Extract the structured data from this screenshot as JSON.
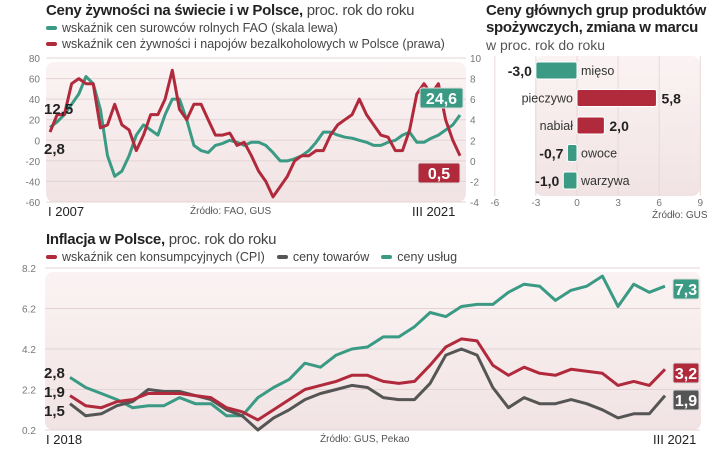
{
  "colors": {
    "fao": "#3a9a84",
    "pl": "#b02a3c",
    "goods": "#555555",
    "services": "#3a9a84",
    "cpi": "#b02a3c"
  },
  "chart_data": [
    {
      "type": "line",
      "title": "Ceny żywności na świecie i w Polsce,",
      "subtitle": "proc. rok do roku",
      "x_start": "I 2007",
      "x_end": "III 2021",
      "source": "Źródło: FAO, GUS",
      "frequency": "quarterly (approx.)",
      "y_left": {
        "range": [
          -60,
          80
        ],
        "ticks": [
          "80",
          "60",
          "40",
          "20",
          "0",
          "-20",
          "-40",
          "-60"
        ]
      },
      "y_right": {
        "range": [
          -4,
          10
        ],
        "ticks": [
          "10",
          "8",
          "6",
          "4",
          "2",
          "0",
          "-2",
          "-4"
        ]
      },
      "series": [
        {
          "name": "wskaźnik cen surowców rolnych FAO (skala lewa)",
          "axis": "left",
          "start_label": "12,5",
          "end_label": "24,6",
          "values": [
            12.5,
            18,
            25,
            35,
            45,
            62,
            55,
            30,
            -15,
            -35,
            -30,
            -15,
            5,
            15,
            10,
            5,
            25,
            40,
            40,
            20,
            -5,
            -10,
            -12,
            -5,
            -3,
            0,
            -2,
            -5,
            -2,
            -2,
            -5,
            -12,
            -20,
            -20,
            -18,
            -15,
            -10,
            -2,
            8,
            8,
            5,
            3,
            2,
            0,
            -2,
            -5,
            -5,
            -2,
            0,
            5,
            8,
            -2,
            -2,
            2,
            5,
            10,
            15,
            24.6
          ]
        },
        {
          "name": "wskaźnik cen żywności i napojów bezalkoholowych w Polsce (prawa)",
          "axis": "right",
          "start_label": "2,8",
          "end_label": "0,5",
          "values": [
            2.8,
            4.5,
            4.5,
            7.5,
            8,
            7.5,
            7.5,
            3.2,
            3.5,
            5.5,
            3.5,
            3.0,
            1,
            2.5,
            4.5,
            4.5,
            6,
            8.8,
            5,
            4,
            5.5,
            5.5,
            4,
            2.5,
            2.5,
            2.7,
            1.5,
            1.8,
            0.5,
            -1,
            -2,
            -3.5,
            -2.5,
            -1.5,
            0,
            0.5,
            0.5,
            1,
            1,
            2.5,
            3.5,
            4,
            4.5,
            6,
            4.5,
            3.5,
            2.5,
            2.3,
            1,
            1,
            3,
            6.5,
            7.5,
            6.5,
            7.5,
            4,
            2,
            0.5
          ]
        }
      ]
    },
    {
      "type": "bar",
      "title": "Ceny głównych grup produktów spożywczych, zmiana w marcu",
      "subtitle": "w proc. rok do roku",
      "categories": [
        "mięso",
        "pieczywo",
        "nabiał",
        "owoce",
        "warzywa"
      ],
      "values": [
        -3.0,
        5.8,
        2.0,
        -0.7,
        -1.0
      ],
      "value_labels": [
        "-3,0",
        "5,8",
        "2,0",
        "-0,7",
        "-1,0"
      ],
      "xlim": [
        -6,
        9
      ],
      "xticks": [
        "-6",
        "-3",
        "0",
        "3",
        "6",
        "9"
      ],
      "source": "Źródło: GUS"
    },
    {
      "type": "line",
      "title": "Inflacja w Polsce,",
      "subtitle": "proc. rok do roku",
      "x_start": "I 2018",
      "x_end": "III 2021",
      "source": "Źródło: GUS, Pekao",
      "ylim": [
        0.2,
        8.2
      ],
      "yticks": [
        "8.2",
        "6.2",
        "4.2",
        "2.2",
        "0.2"
      ],
      "frequency": "monthly",
      "series": [
        {
          "name": "wskaźnik cen konsumpcyjnych (CPI)",
          "key": "cpi",
          "start_label": "1,9",
          "end_label": "3,2",
          "values": [
            1.9,
            1.4,
            1.3,
            1.6,
            1.7,
            2.0,
            2.0,
            2.0,
            1.9,
            1.8,
            1.3,
            1.1,
            0.7,
            1.2,
            1.7,
            2.2,
            2.4,
            2.6,
            2.9,
            2.9,
            2.6,
            2.5,
            2.6,
            3.4,
            4.3,
            4.7,
            4.6,
            3.4,
            2.9,
            3.3,
            3.0,
            2.9,
            3.2,
            3.1,
            3.0,
            2.4,
            2.6,
            2.4,
            3.2
          ]
        },
        {
          "name": "ceny towarów",
          "key": "goods",
          "start_label": "1,5",
          "end_label": "1,9",
          "values": [
            1.5,
            0.9,
            1.0,
            1.4,
            1.6,
            2.2,
            2.1,
            2.1,
            1.9,
            1.7,
            1.2,
            0.9,
            0.2,
            0.8,
            1.2,
            1.7,
            2.0,
            2.2,
            2.4,
            2.3,
            1.8,
            1.7,
            1.7,
            2.5,
            3.9,
            4.2,
            3.9,
            2.3,
            1.3,
            1.8,
            1.5,
            1.5,
            1.7,
            1.5,
            1.2,
            0.8,
            1.0,
            1.0,
            1.9
          ]
        },
        {
          "name": "ceny usług",
          "key": "services",
          "start_label": "2,8",
          "end_label": "7,3",
          "values": [
            2.8,
            2.3,
            2.0,
            1.7,
            1.3,
            1.4,
            1.4,
            1.8,
            1.5,
            1.5,
            0.9,
            0.9,
            1.8,
            2.3,
            2.7,
            3.5,
            3.3,
            3.9,
            4.2,
            4.3,
            4.8,
            4.8,
            5.3,
            6.0,
            5.8,
            6.3,
            6.4,
            6.4,
            7.0,
            7.4,
            7.3,
            6.6,
            7.1,
            7.3,
            7.8,
            6.3,
            7.4,
            7.0,
            7.3
          ]
        }
      ]
    }
  ]
}
